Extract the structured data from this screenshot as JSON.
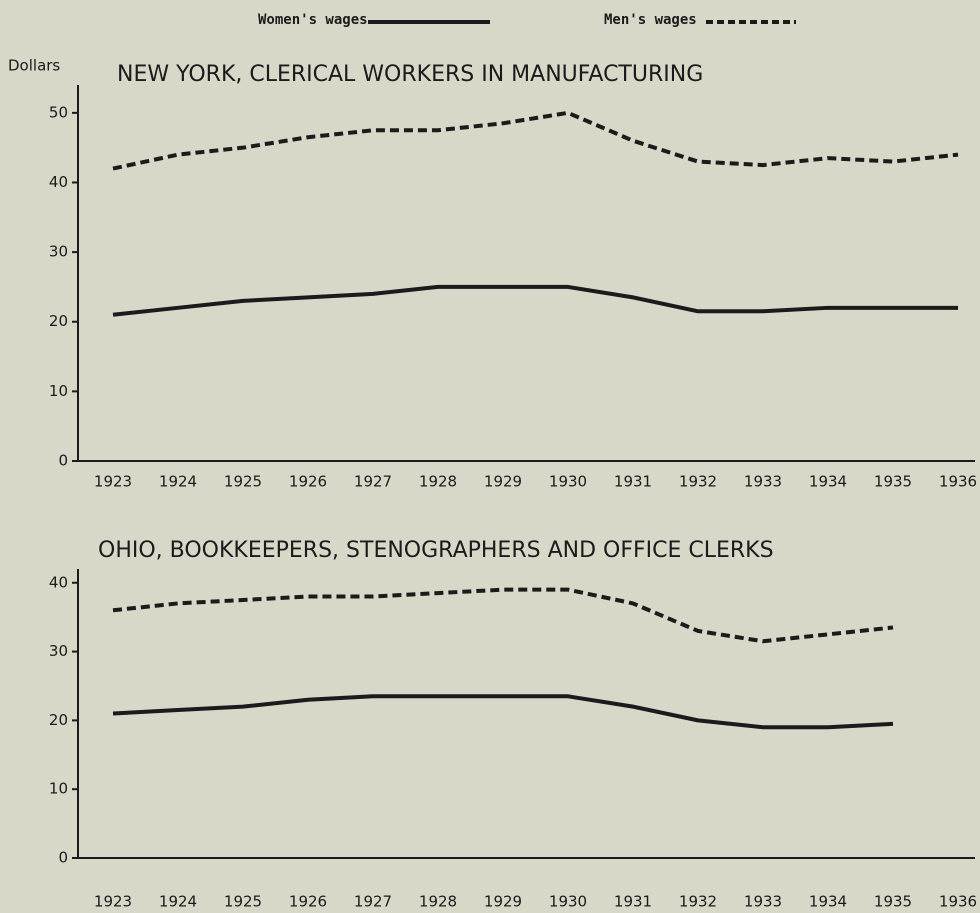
{
  "chart_data": [
    {
      "type": "line",
      "title": "NEW YORK, CLERICAL WORKERS IN MANUFACTURING",
      "y_label": "Dollars",
      "categories": [
        "1923",
        "1924",
        "1925",
        "1926",
        "1927",
        "1928",
        "1929",
        "1930",
        "1931",
        "1932",
        "1933",
        "1934",
        "1935",
        "1936"
      ],
      "series": [
        {
          "name": "Women's wages",
          "color": "#1b1b1b",
          "style": "solid",
          "values": [
            21,
            22,
            23,
            23.5,
            24,
            25,
            25,
            25,
            23.5,
            21.5,
            21.5,
            22,
            22,
            22
          ]
        },
        {
          "name": "Men's wages",
          "color": "#1b1b1b",
          "style": "dashed",
          "values": [
            42,
            44,
            45,
            46.5,
            47.5,
            47.5,
            48.5,
            50,
            46,
            43,
            42.5,
            43.5,
            43,
            44
          ]
        }
      ],
      "ylim": [
        0,
        54
      ],
      "yticks": [
        0,
        10,
        20,
        30,
        40,
        50
      ]
    },
    {
      "type": "line",
      "title": "OHIO, BOOKKEEPERS, STENOGRAPHERS AND OFFICE CLERKS",
      "categories": [
        "1923",
        "1924",
        "1925",
        "1926",
        "1927",
        "1928",
        "1929",
        "1930",
        "1931",
        "1932",
        "1933",
        "1934",
        "1935",
        "1936"
      ],
      "series": [
        {
          "color": "#1b1b1b",
          "style": "solid",
          "values": [
            21,
            21.5,
            22,
            23,
            23.5,
            23.5,
            23.5,
            23.5,
            22,
            20,
            19,
            19,
            19.5,
            null
          ]
        },
        {
          "color": "#1b1b1b",
          "style": "dashed",
          "values": [
            36,
            37,
            37.5,
            38,
            38,
            38.5,
            39,
            39,
            37,
            33,
            31.5,
            32.5,
            33.5,
            null
          ]
        }
      ],
      "ylim": [
        0,
        42
      ],
      "yticks": [
        0,
        10,
        20,
        30,
        40
      ]
    }
  ]
}
